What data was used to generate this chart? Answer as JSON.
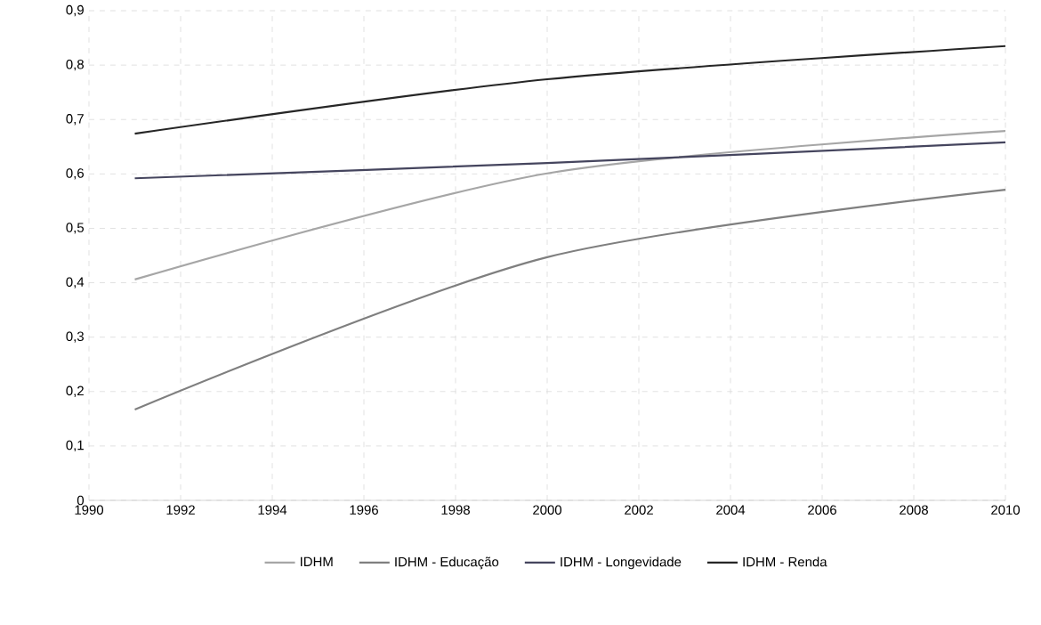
{
  "chart_data": {
    "type": "line",
    "x": [
      1991,
      2000,
      2010
    ],
    "series": [
      {
        "name": "IDHM",
        "color": "#a6a6a6",
        "values": [
          0.406,
          0.601,
          0.679
        ]
      },
      {
        "name": "IDHM - Educação",
        "color": "#7f7f7f",
        "values": [
          0.167,
          0.447,
          0.571
        ]
      },
      {
        "name": "IDHM - Longevidade",
        "color": "#45455e",
        "values": [
          0.592,
          0.62,
          0.658
        ]
      },
      {
        "name": "IDHM - Renda",
        "color": "#262626",
        "values": [
          0.674,
          0.774,
          0.835
        ]
      }
    ],
    "xlim": [
      1990,
      2010
    ],
    "xticks": [
      1990,
      1992,
      1994,
      1996,
      1998,
      2000,
      2002,
      2004,
      2006,
      2008,
      2010
    ],
    "ylim": [
      0,
      0.9
    ],
    "yticks": [
      0,
      {
        "value": 0.1,
        "label": "0,1"
      },
      {
        "value": 0.2,
        "label": "0,2"
      },
      {
        "value": 0.3,
        "label": "0,3"
      },
      {
        "value": 0.4,
        "label": "0,4"
      },
      {
        "value": 0.5,
        "label": "0,5"
      },
      {
        "value": 0.6,
        "label": "0,6"
      },
      {
        "value": 0.7,
        "label": "0,7"
      },
      {
        "value": 0.8,
        "label": "0,8"
      },
      {
        "value": 0.9,
        "label": "0,9"
      }
    ],
    "grid": true,
    "legend": "bottom",
    "marker": "none",
    "line_style": "solid"
  }
}
